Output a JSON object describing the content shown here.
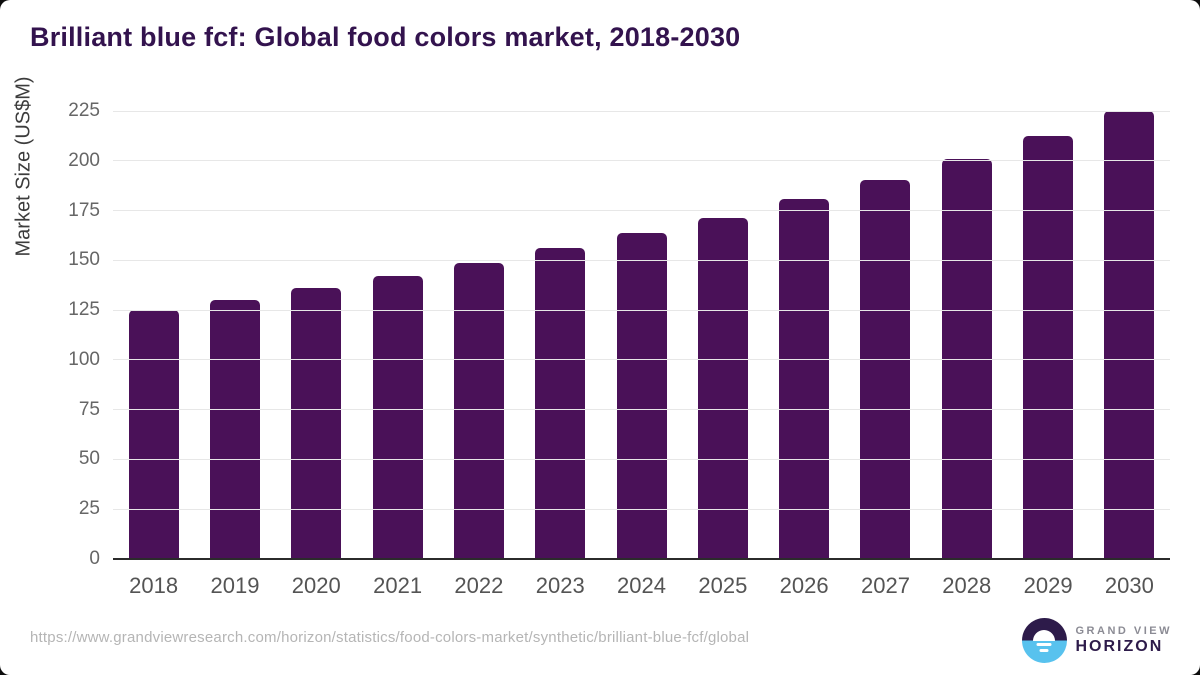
{
  "header": {
    "title": "Brilliant blue fcf: Global food colors market, 2018-2030"
  },
  "chart_data": {
    "type": "bar",
    "categories": [
      "2018",
      "2019",
      "2020",
      "2021",
      "2022",
      "2023",
      "2024",
      "2025",
      "2026",
      "2027",
      "2028",
      "2029",
      "2030"
    ],
    "values": [
      125,
      130,
      136,
      142,
      148.5,
      156,
      163.5,
      171.5,
      181,
      190.5,
      201,
      212.5,
      225
    ],
    "title": "Brilliant blue fcf: Global food colors market, 2018-2030",
    "xlabel": "",
    "ylabel": "Market Size (US$M)",
    "ylim": [
      0,
      225
    ],
    "yticks": [
      0,
      25,
      50,
      75,
      100,
      125,
      150,
      175,
      200,
      225
    ],
    "grid": true,
    "legend": "none",
    "bar_color": "#4a1158"
  },
  "footer": {
    "source_url": "https://www.grandviewresearch.com/horizon/statistics/food-colors-market/synthetic/brilliant-blue-fcf/global",
    "logo": {
      "line1": "GRAND VIEW",
      "line2": "HORIZON"
    }
  },
  "colors": {
    "bar": "#4a1158",
    "title_text": "#33134e",
    "axis_line": "#2b2b2b",
    "gridline": "#e7e7e7",
    "tick_text": "#666666",
    "xlabel_text": "#545454",
    "url_text": "#b5b5b5",
    "logo_purple": "#2d1b4a",
    "logo_blue": "#58c2ee"
  }
}
